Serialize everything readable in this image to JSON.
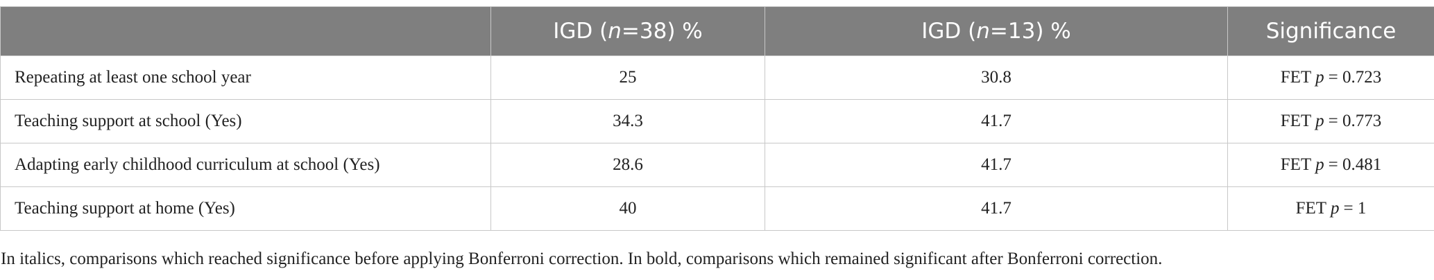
{
  "table": {
    "header": [
      null,
      {
        "pre": "IGD (",
        "italic": "n",
        "post": "=38) %"
      },
      {
        "pre": "IGD (",
        "italic": "n",
        "post": "=13) %"
      },
      {
        "pre": "Significance"
      }
    ],
    "rows": [
      [
        "Repeating at least one school year",
        25,
        30.8,
        {
          "test": "FET",
          "stat": "p",
          "result": "= 0.723"
        }
      ],
      [
        "Teaching support at school (Yes)",
        34.3,
        41.7,
        {
          "test": "FET",
          "stat": "p",
          "result": "= 0.773"
        }
      ],
      [
        "Adapting early childhood curriculum at school (Yes)",
        28.6,
        41.7,
        {
          "test": "FET",
          "stat": "p",
          "result": "= 0.481"
        }
      ],
      [
        "Teaching support at home (Yes)",
        40,
        41.7,
        {
          "test": "FET",
          "stat": "p",
          "result": "= 1"
        }
      ]
    ]
  },
  "footnote": "In italics, comparisons which reached significance before applying Bonferroni correction. In bold, comparisons which remained significant after Bonferroni correction."
}
